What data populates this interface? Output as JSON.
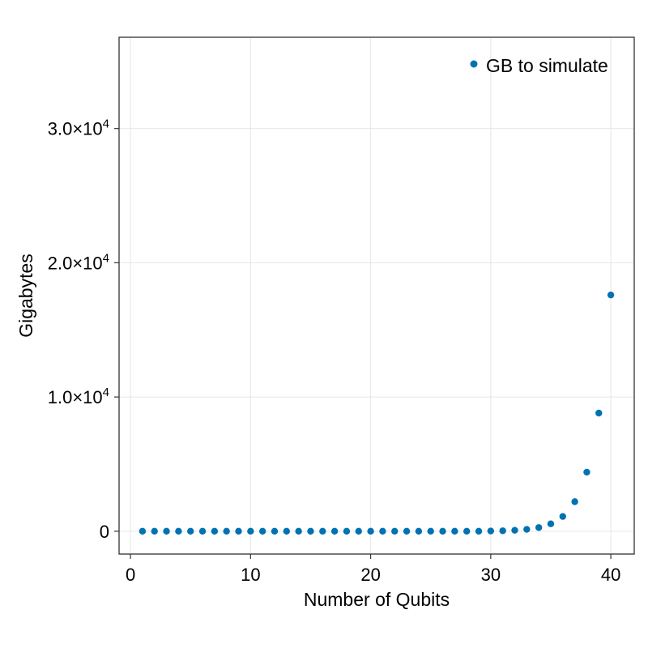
{
  "chart_data": {
    "type": "scatter",
    "title": "",
    "xlabel": "Number of Qubits",
    "ylabel": "Gigabytes",
    "xlim": [
      -0.95,
      41.95
    ],
    "ylim": [
      -1700,
      36800
    ],
    "grid": true,
    "legend_position": "top-right",
    "x_ticks": [
      {
        "value": 0,
        "label": "0"
      },
      {
        "value": 10,
        "label": "10"
      },
      {
        "value": 20,
        "label": "20"
      },
      {
        "value": 30,
        "label": "30"
      },
      {
        "value": 40,
        "label": "40"
      }
    ],
    "y_ticks": [
      {
        "value": 0,
        "label_main": "0",
        "label_sup": ""
      },
      {
        "value": 10000,
        "label_main": "1.0×10",
        "label_sup": "4"
      },
      {
        "value": 20000,
        "label_main": "2.0×10",
        "label_sup": "4"
      },
      {
        "value": 30000,
        "label_main": "3.0×10",
        "label_sup": "4"
      }
    ],
    "series": [
      {
        "name": "GB to simulate",
        "color": "#0072b2",
        "x": [
          1,
          2,
          3,
          4,
          5,
          6,
          7,
          8,
          9,
          10,
          11,
          12,
          13,
          14,
          15,
          16,
          17,
          18,
          19,
          20,
          21,
          22,
          23,
          24,
          25,
          26,
          27,
          28,
          29,
          30,
          31,
          32,
          33,
          34,
          35,
          36,
          37,
          38,
          39,
          40
        ],
        "y": [
          0,
          0,
          0,
          0,
          0,
          0,
          0,
          0,
          0,
          0,
          0,
          0,
          0,
          0,
          0,
          0,
          0,
          0,
          0,
          0,
          0,
          0,
          0,
          0,
          0,
          0,
          0,
          0,
          0,
          17,
          34,
          69,
          137,
          275,
          550,
          1100,
          2200,
          4400,
          8800,
          17600
        ]
      }
    ]
  }
}
